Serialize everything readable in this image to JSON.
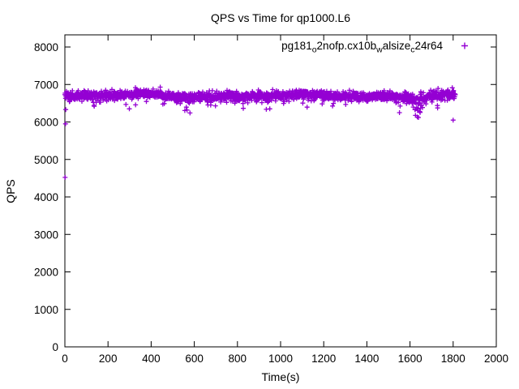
{
  "window": {
    "background": "#ffffff",
    "border_color": "#000000"
  },
  "chart_data": {
    "type": "scatter",
    "title": "QPS vs Time for qp1000.L6",
    "xlabel": "Time(s)",
    "ylabel": "QPS",
    "xlim": [
      0,
      2000
    ],
    "ylim": [
      0,
      8320
    ],
    "x_ticks": [
      0,
      200,
      400,
      600,
      800,
      1000,
      1200,
      1400,
      1600,
      1800,
      2000
    ],
    "y_ticks": [
      0,
      1000,
      2000,
      3000,
      4000,
      5000,
      6000,
      7000,
      8000
    ],
    "grid": false,
    "legend_position": "top-right-inside",
    "series": [
      {
        "name": "pg181_o2nofp.cx10b_walsize_c24r64",
        "display_segments": [
          {
            "t": "pg181"
          },
          {
            "t": "o",
            "sub": true
          },
          {
            "t": "2nofp.cx10b"
          },
          {
            "t": "w",
            "sub": true
          },
          {
            "t": "alsize"
          },
          {
            "t": "c",
            "sub": true
          },
          {
            "t": "24r64"
          }
        ],
        "marker": "plus",
        "color": "#9400D3",
        "sample_interval_s": 1,
        "t_start": 0,
        "t_end": 1810,
        "qps_mean": 6690,
        "qps_std": 62,
        "band_range": [
          6350,
          6950
        ],
        "bump": {
          "t_center": 385,
          "height": 45,
          "width": 45
        },
        "dip": {
          "t_start": 1605,
          "t_end": 1670,
          "t_center": 1634,
          "min_qps": 6060
        },
        "low_tail_probability": 0.022,
        "outliers": [
          [
            1,
            4520
          ],
          [
            3,
            5950
          ],
          [
            4,
            6330
          ],
          [
            580,
            6240
          ],
          [
            950,
            6350
          ],
          [
            1800,
            6050
          ]
        ]
      }
    ]
  }
}
